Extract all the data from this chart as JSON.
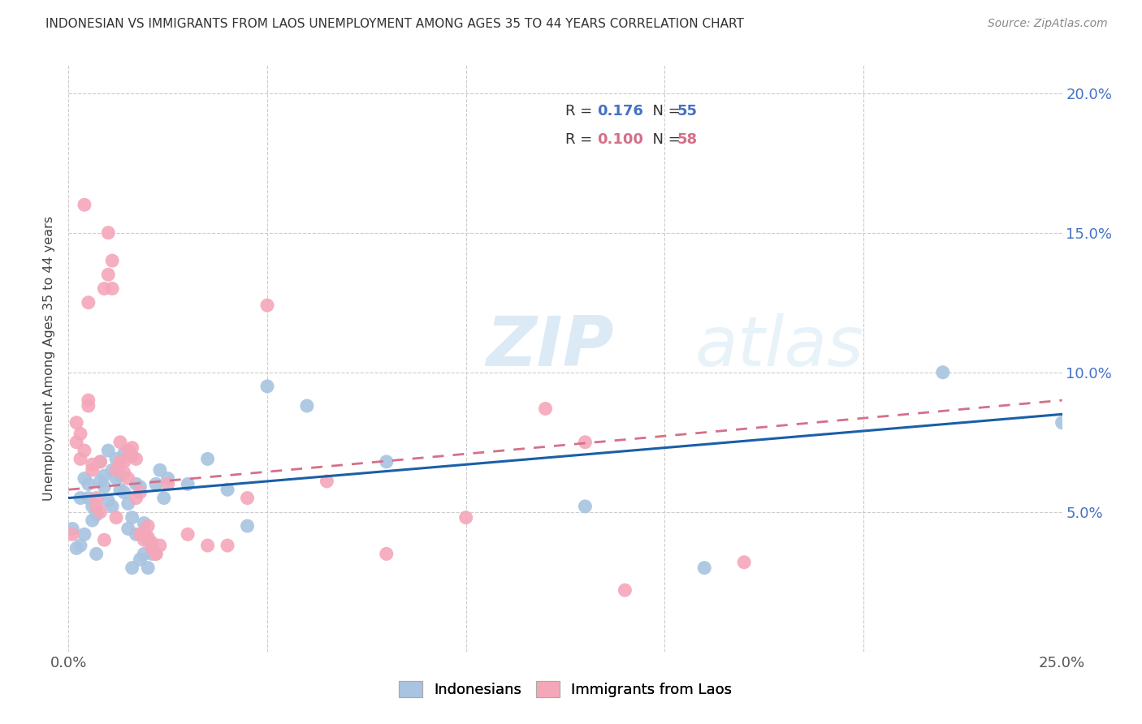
{
  "title": "INDONESIAN VS IMMIGRANTS FROM LAOS UNEMPLOYMENT AMONG AGES 35 TO 44 YEARS CORRELATION CHART",
  "source": "Source: ZipAtlas.com",
  "ylabel": "Unemployment Among Ages 35 to 44 years",
  "xlim": [
    0.0,
    0.25
  ],
  "ylim": [
    0.0,
    0.21
  ],
  "xtick_positions": [
    0.0,
    0.05,
    0.1,
    0.15,
    0.2,
    0.25
  ],
  "xtick_labels": [
    "0.0%",
    "",
    "",
    "",
    "",
    "25.0%"
  ],
  "ytick_positions": [
    0.0,
    0.05,
    0.1,
    0.15,
    0.2
  ],
  "ytick_labels_right": [
    "",
    "5.0%",
    "10.0%",
    "15.0%",
    "20.0%"
  ],
  "indonesian_color": "#a8c4e0",
  "laos_color": "#f4a7b9",
  "indonesian_line_color": "#1a5fa8",
  "laos_line_color": "#d4708a",
  "R_indonesian": 0.176,
  "N_indonesian": 55,
  "R_laos": 0.1,
  "N_laos": 58,
  "watermark": "ZIPatlas",
  "indonesian_points": [
    [
      0.001,
      0.044
    ],
    [
      0.002,
      0.037
    ],
    [
      0.003,
      0.038
    ],
    [
      0.003,
      0.055
    ],
    [
      0.004,
      0.042
    ],
    [
      0.004,
      0.062
    ],
    [
      0.005,
      0.055
    ],
    [
      0.005,
      0.06
    ],
    [
      0.006,
      0.047
    ],
    [
      0.006,
      0.052
    ],
    [
      0.007,
      0.049
    ],
    [
      0.007,
      0.035
    ],
    [
      0.008,
      0.061
    ],
    [
      0.008,
      0.068
    ],
    [
      0.009,
      0.063
    ],
    [
      0.009,
      0.059
    ],
    [
      0.01,
      0.054
    ],
    [
      0.01,
      0.072
    ],
    [
      0.011,
      0.065
    ],
    [
      0.011,
      0.052
    ],
    [
      0.012,
      0.069
    ],
    [
      0.012,
      0.062
    ],
    [
      0.013,
      0.058
    ],
    [
      0.013,
      0.063
    ],
    [
      0.014,
      0.071
    ],
    [
      0.014,
      0.057
    ],
    [
      0.015,
      0.053
    ],
    [
      0.015,
      0.044
    ],
    [
      0.016,
      0.048
    ],
    [
      0.016,
      0.03
    ],
    [
      0.017,
      0.042
    ],
    [
      0.017,
      0.06
    ],
    [
      0.018,
      0.059
    ],
    [
      0.018,
      0.033
    ],
    [
      0.019,
      0.046
    ],
    [
      0.019,
      0.035
    ],
    [
      0.02,
      0.03
    ],
    [
      0.02,
      0.04
    ],
    [
      0.021,
      0.035
    ],
    [
      0.021,
      0.038
    ],
    [
      0.022,
      0.06
    ],
    [
      0.023,
      0.065
    ],
    [
      0.024,
      0.055
    ],
    [
      0.025,
      0.062
    ],
    [
      0.03,
      0.06
    ],
    [
      0.035,
      0.069
    ],
    [
      0.04,
      0.058
    ],
    [
      0.045,
      0.045
    ],
    [
      0.05,
      0.095
    ],
    [
      0.06,
      0.088
    ],
    [
      0.08,
      0.068
    ],
    [
      0.13,
      0.052
    ],
    [
      0.16,
      0.03
    ],
    [
      0.22,
      0.1
    ],
    [
      0.25,
      0.082
    ]
  ],
  "laos_points": [
    [
      0.001,
      0.042
    ],
    [
      0.002,
      0.075
    ],
    [
      0.002,
      0.082
    ],
    [
      0.003,
      0.078
    ],
    [
      0.003,
      0.069
    ],
    [
      0.004,
      0.072
    ],
    [
      0.004,
      0.16
    ],
    [
      0.005,
      0.088
    ],
    [
      0.005,
      0.09
    ],
    [
      0.005,
      0.125
    ],
    [
      0.006,
      0.067
    ],
    [
      0.006,
      0.065
    ],
    [
      0.007,
      0.052
    ],
    [
      0.007,
      0.055
    ],
    [
      0.008,
      0.068
    ],
    [
      0.008,
      0.05
    ],
    [
      0.009,
      0.04
    ],
    [
      0.009,
      0.13
    ],
    [
      0.01,
      0.135
    ],
    [
      0.01,
      0.15
    ],
    [
      0.011,
      0.14
    ],
    [
      0.011,
      0.13
    ],
    [
      0.012,
      0.065
    ],
    [
      0.012,
      0.048
    ],
    [
      0.013,
      0.068
    ],
    [
      0.013,
      0.075
    ],
    [
      0.014,
      0.064
    ],
    [
      0.014,
      0.068
    ],
    [
      0.015,
      0.072
    ],
    [
      0.015,
      0.062
    ],
    [
      0.016,
      0.073
    ],
    [
      0.016,
      0.07
    ],
    [
      0.017,
      0.069
    ],
    [
      0.017,
      0.055
    ],
    [
      0.018,
      0.057
    ],
    [
      0.018,
      0.042
    ],
    [
      0.019,
      0.04
    ],
    [
      0.019,
      0.043
    ],
    [
      0.02,
      0.041
    ],
    [
      0.02,
      0.045
    ],
    [
      0.021,
      0.037
    ],
    [
      0.021,
      0.039
    ],
    [
      0.022,
      0.035
    ],
    [
      0.022,
      0.035
    ],
    [
      0.023,
      0.038
    ],
    [
      0.025,
      0.06
    ],
    [
      0.03,
      0.042
    ],
    [
      0.035,
      0.038
    ],
    [
      0.04,
      0.038
    ],
    [
      0.045,
      0.055
    ],
    [
      0.05,
      0.124
    ],
    [
      0.065,
      0.061
    ],
    [
      0.08,
      0.035
    ],
    [
      0.1,
      0.048
    ],
    [
      0.12,
      0.087
    ],
    [
      0.13,
      0.075
    ],
    [
      0.14,
      0.022
    ],
    [
      0.17,
      0.032
    ]
  ]
}
